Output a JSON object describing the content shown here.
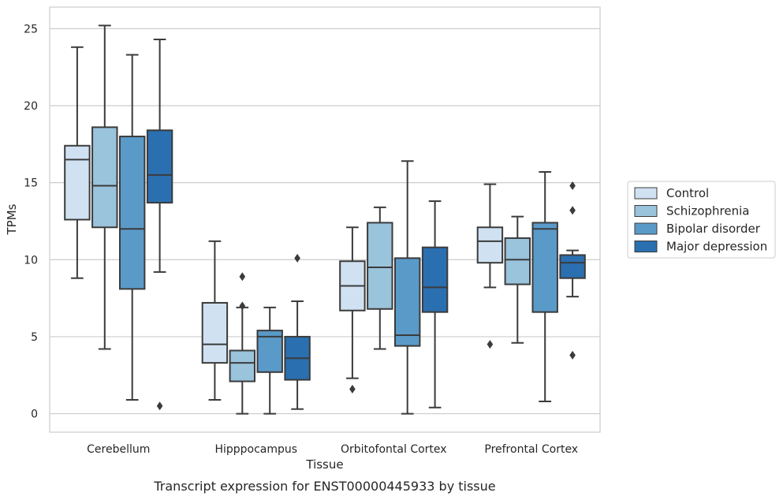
{
  "caption": "Transcript expression for ENST00000445933 by tissue",
  "chart_data": {
    "type": "box",
    "xlabel": "Tissue",
    "ylabel": "TPMs",
    "ylim": [
      -1.2,
      26.4
    ],
    "yticks": [
      0,
      5,
      10,
      15,
      20,
      25
    ],
    "grid": "horizontal",
    "legend_position": "right",
    "categories": [
      "Cerebellum",
      "Hipppocampus",
      "Orbitofontal Cortex",
      "Prefrontal Cortex"
    ],
    "series": [
      {
        "name": "Control",
        "color": "#d0e1f2",
        "boxes": [
          {
            "whislo": 8.8,
            "q1": 12.6,
            "med": 16.5,
            "q3": 17.4,
            "whishi": 23.8,
            "fliers": []
          },
          {
            "whislo": 0.9,
            "q1": 3.3,
            "med": 4.5,
            "q3": 7.2,
            "whishi": 11.2,
            "fliers": []
          },
          {
            "whislo": 2.3,
            "q1": 6.7,
            "med": 8.3,
            "q3": 9.9,
            "whishi": 12.1,
            "fliers": [
              1.6
            ]
          },
          {
            "whislo": 8.2,
            "q1": 9.8,
            "med": 11.2,
            "q3": 12.1,
            "whishi": 14.9,
            "fliers": [
              4.5
            ]
          }
        ]
      },
      {
        "name": "Schizophrenia",
        "color": "#9ac3dc",
        "boxes": [
          {
            "whislo": 4.2,
            "q1": 12.1,
            "med": 14.8,
            "q3": 18.6,
            "whishi": 25.2,
            "fliers": []
          },
          {
            "whislo": 0.0,
            "q1": 2.1,
            "med": 3.3,
            "q3": 4.1,
            "whishi": 6.9,
            "fliers": [
              8.9,
              7.0
            ]
          },
          {
            "whislo": 4.2,
            "q1": 6.8,
            "med": 9.5,
            "q3": 12.4,
            "whishi": 13.4,
            "fliers": []
          },
          {
            "whislo": 4.6,
            "q1": 8.4,
            "med": 10.0,
            "q3": 11.4,
            "whishi": 12.8,
            "fliers": []
          }
        ]
      },
      {
        "name": "Bipolar disorder",
        "color": "#5a9ac8",
        "boxes": [
          {
            "whislo": 0.9,
            "q1": 8.1,
            "med": 12.0,
            "q3": 18.0,
            "whishi": 23.3,
            "fliers": []
          },
          {
            "whislo": 0.0,
            "q1": 2.7,
            "med": 5.0,
            "q3": 5.4,
            "whishi": 6.9,
            "fliers": []
          },
          {
            "whislo": 0.0,
            "q1": 4.4,
            "med": 5.1,
            "q3": 10.1,
            "whishi": 16.4,
            "fliers": []
          },
          {
            "whislo": 0.8,
            "q1": 6.6,
            "med": 12.0,
            "q3": 12.4,
            "whishi": 15.7,
            "fliers": []
          }
        ]
      },
      {
        "name": "Major depression",
        "color": "#2a6fb0",
        "boxes": [
          {
            "whislo": 9.2,
            "q1": 13.7,
            "med": 15.5,
            "q3": 18.4,
            "whishi": 24.3,
            "fliers": [
              0.5
            ]
          },
          {
            "whislo": 0.3,
            "q1": 2.2,
            "med": 3.6,
            "q3": 5.0,
            "whishi": 7.3,
            "fliers": [
              10.1
            ]
          },
          {
            "whislo": 0.4,
            "q1": 6.6,
            "med": 8.2,
            "q3": 10.8,
            "whishi": 13.8,
            "fliers": []
          },
          {
            "whislo": 7.6,
            "q1": 8.8,
            "med": 9.8,
            "q3": 10.3,
            "whishi": 10.6,
            "fliers": [
              14.8,
              13.2,
              3.8
            ]
          }
        ]
      }
    ]
  }
}
